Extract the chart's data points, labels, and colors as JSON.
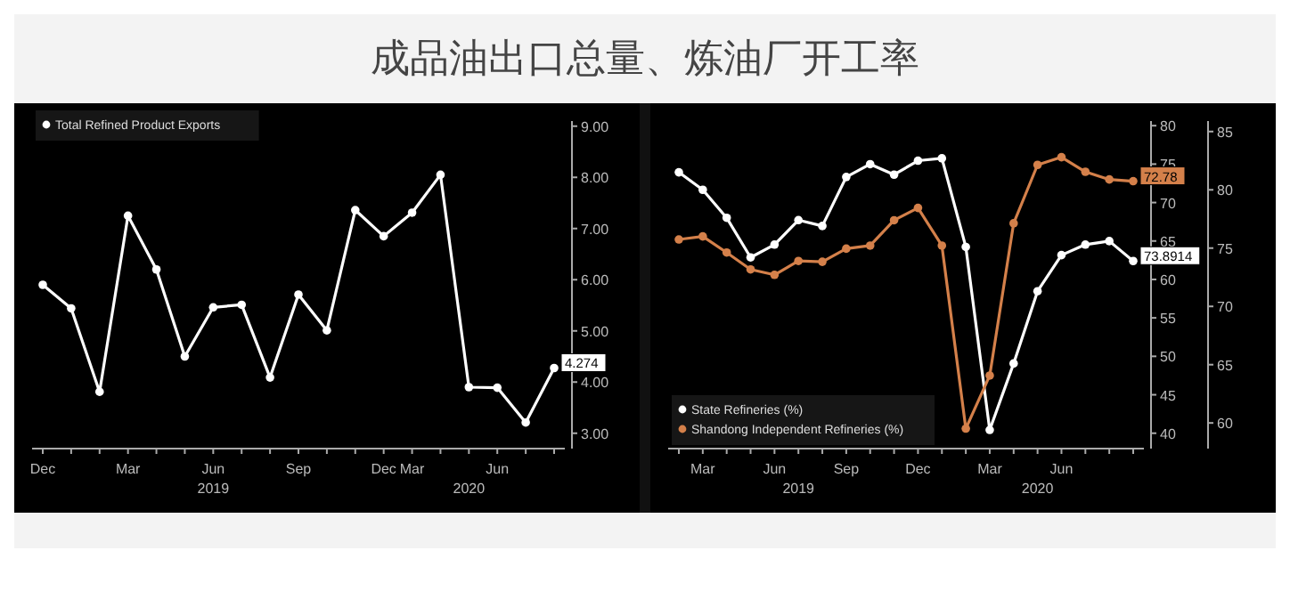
{
  "chart_data": [
    {
      "type": "line",
      "title": "成品油出口总量、炼油厂开工率",
      "categories": [
        "Dec",
        null,
        null,
        "Mar",
        null,
        null,
        "Jun\n2019",
        null,
        null,
        "Sep",
        null,
        null,
        "Dec",
        "Mar",
        null,
        "\n2020",
        "Jun",
        null,
        null
      ],
      "series": [
        {
          "name": "Total Refined Product Exports",
          "color": "#ffffff",
          "values": [
            5.9,
            5.44,
            3.81,
            7.25,
            6.2,
            4.5,
            5.46,
            5.51,
            4.09,
            5.71,
            5.01,
            7.36,
            6.85,
            7.31,
            8.05,
            3.9,
            3.89,
            3.21,
            4.274
          ],
          "value_labels": [
            null,
            null,
            null,
            null,
            null,
            null,
            null,
            null,
            null,
            null,
            null,
            null,
            null,
            null,
            null,
            null,
            null,
            null,
            "4.274"
          ]
        }
      ],
      "ylim": [
        2.7,
        9.1
      ],
      "yticks": [
        {
          "value": 3,
          "label": "3.00"
        },
        {
          "value": 4,
          "label": "4.00"
        },
        {
          "value": 5,
          "label": "5.00"
        },
        {
          "value": 6,
          "label": "6.00"
        },
        {
          "value": 7,
          "label": "7.00"
        },
        {
          "value": 8,
          "label": "8.00"
        },
        {
          "value": 9,
          "label": "9.00"
        }
      ],
      "legend": "top left",
      "marker": "circle",
      "grid": false
    },
    {
      "type": "line",
      "categories": [
        null,
        "Mar",
        null,
        null,
        "Jun",
        "\n2019",
        null,
        "Sep",
        null,
        null,
        "Dec",
        null,
        null,
        "Mar",
        null,
        "\n2020",
        "Jun",
        null,
        null,
        null
      ],
      "series": [
        {
          "name": "State Refineries (%)",
          "color": "#ffffff",
          "axis": "y2",
          "values": [
            81.5,
            80.0,
            77.6,
            74.2,
            75.3,
            77.4,
            76.9,
            81.1,
            82.2,
            81.3,
            82.5,
            82.7,
            75.1,
            59.4,
            65.1,
            71.3,
            74.4,
            75.3,
            75.6,
            73.8914
          ],
          "value_labels": [
            null,
            null,
            null,
            null,
            null,
            null,
            null,
            null,
            null,
            null,
            null,
            null,
            null,
            null,
            null,
            null,
            null,
            null,
            null,
            "73.8914"
          ]
        },
        {
          "name": "Shandong Independent Refineries (%)",
          "color": "#d4804a",
          "values": [
            65.2,
            65.6,
            63.5,
            61.3,
            60.6,
            62.4,
            62.3,
            64.0,
            64.4,
            67.7,
            69.3,
            64.4,
            40.6,
            47.5,
            67.3,
            74.9,
            75.9,
            74.0,
            73.0,
            72.78
          ],
          "value_labels": [
            null,
            null,
            null,
            null,
            null,
            null,
            null,
            null,
            null,
            null,
            null,
            null,
            null,
            null,
            null,
            null,
            null,
            null,
            null,
            "72.78"
          ]
        }
      ],
      "ylim": [
        38,
        80.6
      ],
      "yticks": [
        40,
        45,
        50,
        55,
        60,
        65,
        70,
        75,
        80
      ],
      "y2lim": [
        57.8,
        85.9
      ],
      "y2ticks": [
        60,
        65,
        70,
        75,
        80,
        85
      ],
      "legend": "bottom left",
      "marker": "circle",
      "grid": false
    }
  ]
}
